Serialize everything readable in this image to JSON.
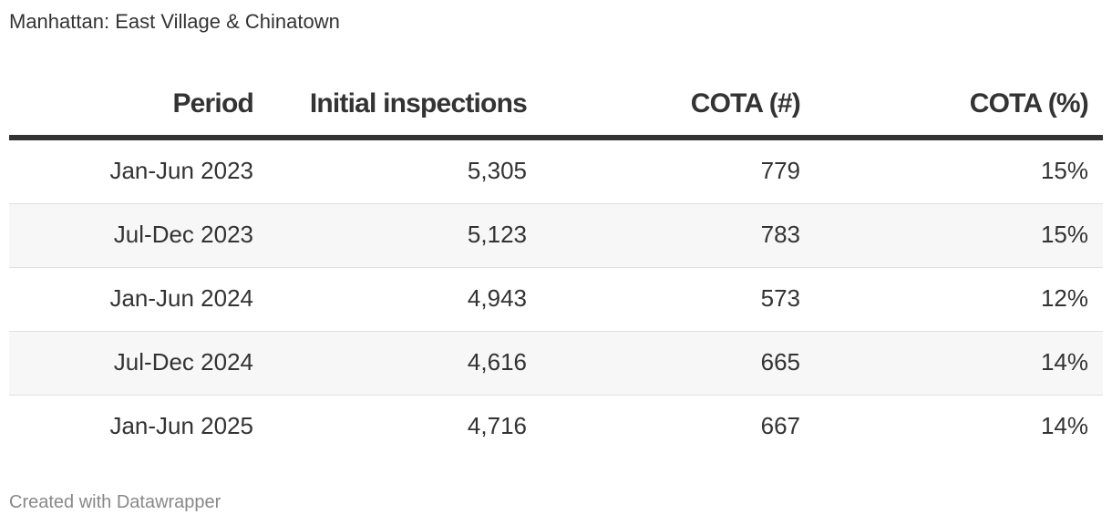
{
  "subtitle": "Manhattan: East Village & Chinatown",
  "footer": "Created with Datawrapper",
  "chart_data": {
    "type": "table",
    "columns": [
      "Period",
      "Initial inspections",
      "COTA (#)",
      "COTA (%)"
    ],
    "rows": [
      [
        "Jan-Jun 2023",
        "5,305",
        "779",
        "15%"
      ],
      [
        "Jul-Dec 2023",
        "5,123",
        "783",
        "15%"
      ],
      [
        "Jan-Jun 2024",
        "4,943",
        "573",
        "12%"
      ],
      [
        "Jul-Dec 2024",
        "4,616",
        "665",
        "14%"
      ],
      [
        "Jan-Jun 2025",
        "4,716",
        "667",
        "14%"
      ]
    ]
  }
}
